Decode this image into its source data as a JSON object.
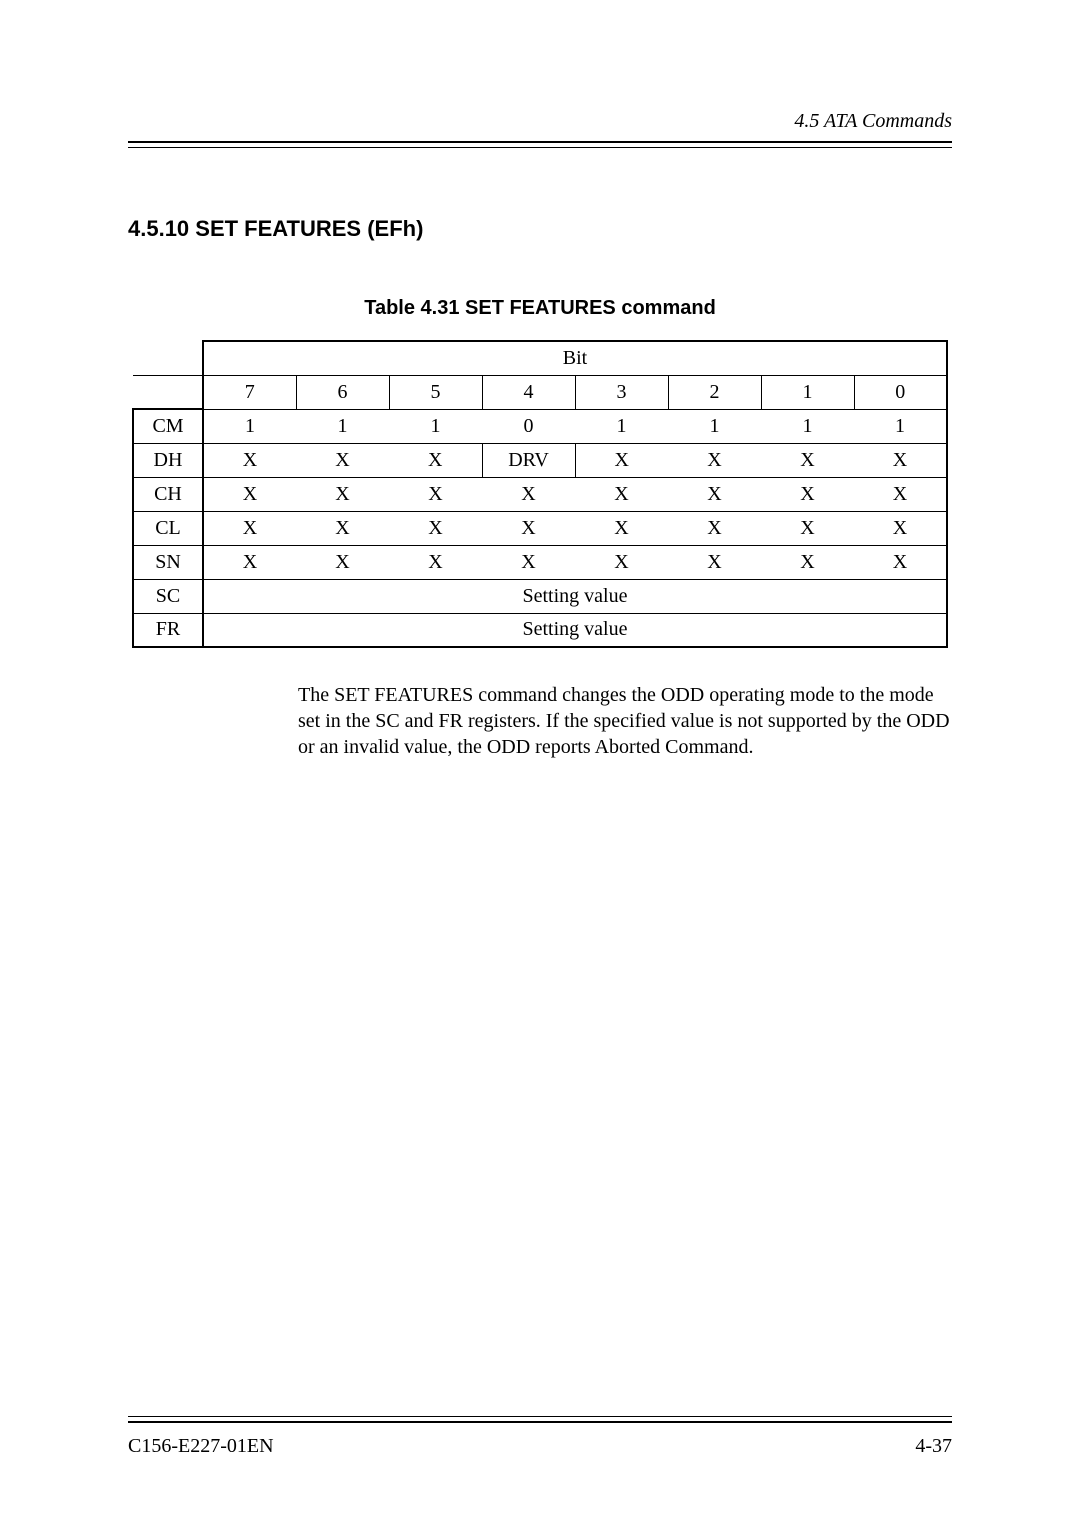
{
  "header": {
    "running_head": "4.5  ATA Commands"
  },
  "section": {
    "title": "4.5.10  SET FEATURES (EFh)"
  },
  "table": {
    "caption": "Table 4.31 SET FEATURES command",
    "bit_header": "Bit",
    "bit_numbers": [
      "7",
      "6",
      "5",
      "4",
      "3",
      "2",
      "1",
      "0"
    ],
    "rows": [
      {
        "label": "CM",
        "cells": [
          "1",
          "1",
          "1",
          "0",
          "1",
          "1",
          "1",
          "1"
        ]
      },
      {
        "label": "DH",
        "cells": [
          "X",
          "X",
          "X",
          "DRV",
          "X",
          "X",
          "X",
          "X"
        ]
      },
      {
        "label": "CH",
        "cells": [
          "X",
          "X",
          "X",
          "X",
          "X",
          "X",
          "X",
          "X"
        ]
      },
      {
        "label": "CL",
        "cells": [
          "X",
          "X",
          "X",
          "X",
          "X",
          "X",
          "X",
          "X"
        ]
      },
      {
        "label": "SN",
        "cells": [
          "X",
          "X",
          "X",
          "X",
          "X",
          "X",
          "X",
          "X"
        ]
      },
      {
        "label": "SC",
        "span": "Setting value"
      },
      {
        "label": "FR",
        "span": "Setting value"
      }
    ]
  },
  "body": {
    "paragraph": "The SET FEATURES command changes the ODD operating mode to the mode set in the SC and FR registers.  If the specified value is not supported by the ODD or an invalid value, the ODD reports Aborted Command."
  },
  "footer": {
    "doc_id": "C156-E227-01EN",
    "page_no": "4-37"
  }
}
